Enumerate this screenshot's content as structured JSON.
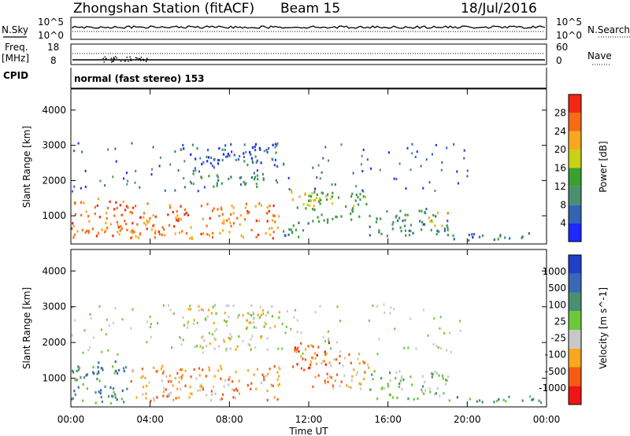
{
  "header": {
    "station": "Zhongshan Station (fitACF)",
    "beam": "Beam 15",
    "date": "18/Jul/2016"
  },
  "top_panels": {
    "nsky_label": "N.Sky",
    "nsky_ticks": [
      "10^5",
      "10^0"
    ],
    "nsearch_label": "N.Search",
    "nsearch_ticks": [
      "10^5",
      "10^0"
    ],
    "freq_label": "Freq.",
    "freq_unit": "[MHz]",
    "freq_ticks": [
      "18",
      "8"
    ],
    "nave_label": "Nave",
    "nave_ticks": [
      "60",
      "0"
    ],
    "cpid_label": "CPID",
    "cpid_text": "normal (fast stereo) 153"
  },
  "axes": {
    "ylabel": "Slant Range [km]",
    "xlabel": "Time UT",
    "y_ticks": [
      "1000",
      "2000",
      "3000",
      "4000"
    ],
    "x_ticks": [
      "00:00",
      "04:00",
      "08:00",
      "12:00",
      "16:00",
      "20:00",
      "00:00"
    ]
  },
  "colors": {
    "power": [
      "#1e28ff",
      "#3264b4",
      "#4a9070",
      "#3aa030",
      "#c8d214",
      "#f7a81e",
      "#f66c14",
      "#f02814"
    ],
    "velocity": [
      "#f01414",
      "#f65a14",
      "#f7a81e",
      "#c8c8c8",
      "#6cc83a",
      "#4a9070",
      "#3a68b4",
      "#2040c8"
    ]
  },
  "chart_data": [
    {
      "type": "heatmap",
      "quantity": "Power",
      "ylabel": "Slant Range [km]",
      "xlabel": "",
      "xlim": [
        0,
        24
      ],
      "ylim": [
        200,
        4600
      ],
      "colorbar_label": "Power [dB]",
      "colorbar_ticks": [
        "4",
        "8",
        "12",
        "16",
        "20",
        "24",
        "28"
      ],
      "colorbar_range": [
        0,
        32
      ],
      "regions": [
        {
          "t": [
            0.0,
            3.0
          ],
          "r": [
            300,
            1500
          ],
          "level": 26
        },
        {
          "t": [
            3.0,
            10.5
          ],
          "r": [
            350,
            1350
          ],
          "level": 25
        },
        {
          "t": [
            10.5,
            12.0
          ],
          "r": [
            400,
            900
          ],
          "level": 10
        },
        {
          "t": [
            11.0,
            13.0
          ],
          "r": [
            1200,
            1800
          ],
          "level": 19
        },
        {
          "t": [
            12.0,
            15.0
          ],
          "r": [
            800,
            1700
          ],
          "level": 13
        },
        {
          "t": [
            15.0,
            19.0
          ],
          "r": [
            400,
            1200
          ],
          "level": 10
        },
        {
          "t": [
            18.0,
            19.0
          ],
          "r": [
            700,
            1100
          ],
          "level": 22
        },
        {
          "t": [
            19.0,
            24.0
          ],
          "r": [
            300,
            500
          ],
          "level": 8
        },
        {
          "t": [
            5.5,
            10.5
          ],
          "r": [
            2400,
            3050
          ],
          "level": 6
        },
        {
          "t": [
            6.0,
            10.0
          ],
          "r": [
            1800,
            2200
          ],
          "level": 10
        }
      ]
    },
    {
      "type": "heatmap",
      "quantity": "Velocity",
      "ylabel": "Slant Range [km]",
      "xlabel": "Time UT",
      "xlim": [
        0,
        24
      ],
      "ylim": [
        200,
        4600
      ],
      "colorbar_label": "Velocity [m s^-1]",
      "colorbar_ticks": [
        "-1000",
        "-500",
        "-100",
        "-25",
        "25",
        "100",
        "500",
        "1000"
      ],
      "regions": [
        {
          "t": [
            0.0,
            3.0
          ],
          "r": [
            300,
            1500
          ],
          "level": 5
        },
        {
          "t": [
            3.0,
            10.5
          ],
          "r": [
            350,
            1350
          ],
          "level": 2
        },
        {
          "t": [
            11.0,
            13.0
          ],
          "r": [
            1200,
            2000
          ],
          "level": 1
        },
        {
          "t": [
            12.0,
            15.0
          ],
          "r": [
            700,
            1700
          ],
          "level": 2
        },
        {
          "t": [
            15.0,
            19.0
          ],
          "r": [
            400,
            1200
          ],
          "level": 4
        },
        {
          "t": [
            19.0,
            24.0
          ],
          "r": [
            300,
            500
          ],
          "level": 5
        },
        {
          "t": [
            5.5,
            10.5
          ],
          "r": [
            2400,
            3050
          ],
          "level": 3
        },
        {
          "t": [
            6.0,
            10.0
          ],
          "r": [
            1800,
            2200
          ],
          "level": 3
        }
      ]
    }
  ]
}
